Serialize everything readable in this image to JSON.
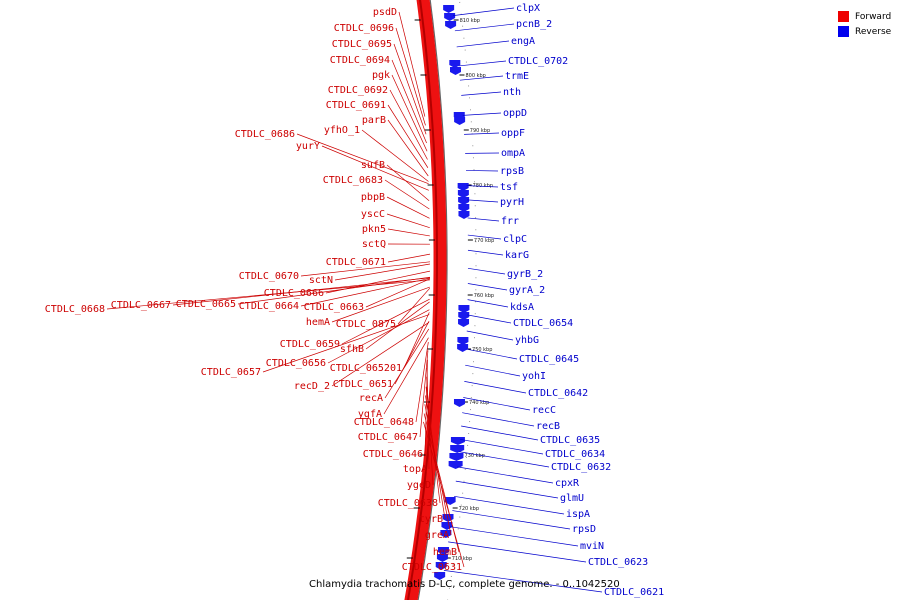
{
  "caption": "Chlamydia trachomatis D-LC, complete genome. - 0..1042520",
  "legend": {
    "forward_label": "Forward",
    "reverse_label": "Reverse",
    "forward_color": "#ee0000",
    "reverse_color": "#0000ee"
  },
  "colors": {
    "forward_ring": "#ee1111",
    "forward_text": "#cc0000",
    "reverse_text": "#0000cc",
    "reverse_feature": "#1a1aee",
    "backbone": "#666666"
  },
  "tick_labels": [
    "810 kbp",
    "800 kbp",
    "790 kbp",
    "780 kbp",
    "770 kbp",
    "760 kbp",
    "750 kbp",
    "740 kbp",
    "730 kbp",
    "720 kbp",
    "710 kbp"
  ],
  "forward_labels": [
    "psdD",
    "CTDLC_0696",
    "CTDLC_0695",
    "CTDLC_0694",
    "pgk",
    "CTDLC_0692",
    "CTDLC_0691",
    "parB",
    "CTDLC_0686",
    "yfhO_1",
    "yurY",
    "sufB",
    "CTDLC_0683",
    "pbpB",
    "yscC",
    "pkn5",
    "sctQ",
    "CTDLC_0671",
    "CTDLC_0670",
    "sctN",
    "CTDLC_0666",
    "CTDLC_0668",
    "CTDLC_0667",
    "CTDLC_0665",
    "CTDLC_0664",
    "CTDLC_0663",
    "hemA",
    "CTDLC_0875",
    "CTDLC_0659",
    "sfhB",
    "CTDLC_0656",
    "CTDLC_065201",
    "CTDLC_0657",
    "recD_2",
    "CTDLC_0651",
    "recA",
    "ygfA",
    "CTDLC_0648",
    "CTDLC_0647",
    "CTDLC_0646",
    "topA",
    "ygeD",
    "CTDLC_0638",
    "tyrB",
    "greA",
    "hemB",
    "CTDLC_0631"
  ],
  "reverse_labels": [
    "clpX",
    "pcnB_2",
    "engA",
    "CTDLC_0702",
    "trmE",
    "nth",
    "oppD",
    "oppF",
    "ompA",
    "rpsB",
    "tsf",
    "pyrH",
    "frr",
    "clpC",
    "karG",
    "gyrB_2",
    "gyrA_2",
    "kdsA",
    "CTDLC_0654",
    "yhbG",
    "CTDLC_0645",
    "yohI",
    "CTDLC_0642",
    "recC",
    "recB",
    "CTDLC_0635",
    "CTDLC_0634",
    "CTDLC_0632",
    "cpxR",
    "glmU",
    "ispA",
    "rpsD",
    "mviN",
    "CTDLC_0623",
    "CTDLC_0621"
  ]
}
